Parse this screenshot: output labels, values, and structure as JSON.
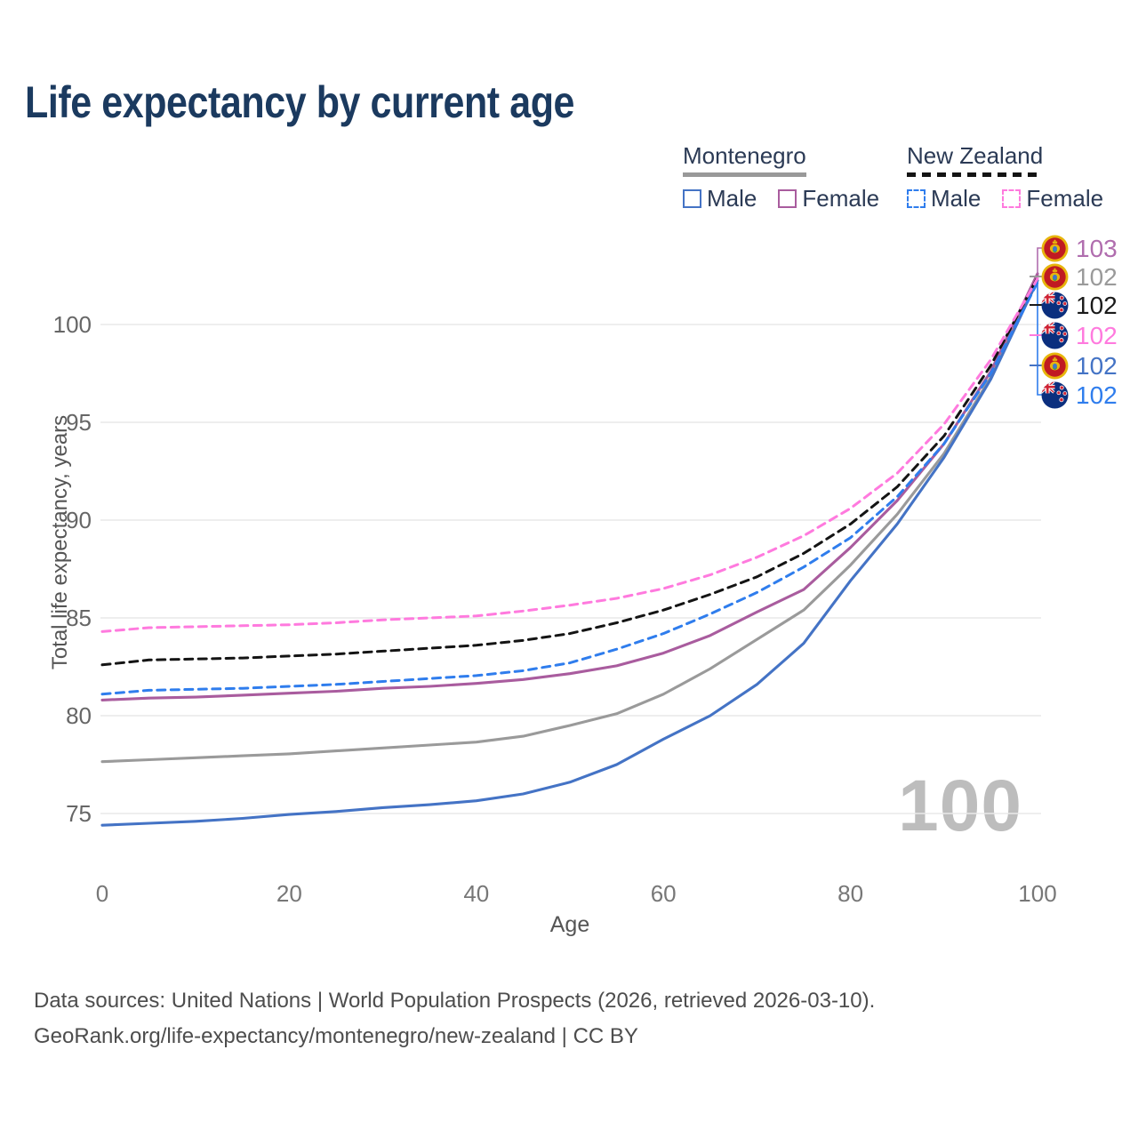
{
  "title": "Life expectancy by current age",
  "watermark_age": "100",
  "legend": {
    "groups": [
      {
        "name": "Montenegro",
        "line_style": "solid",
        "line_color": "#999999",
        "items": [
          {
            "label": "Male",
            "color": "#4473c5"
          },
          {
            "label": "Female",
            "color": "#a95c9e"
          }
        ]
      },
      {
        "name": "New Zealand",
        "line_style": "dashed",
        "line_color": "#141414",
        "items": [
          {
            "label": "Male",
            "color": "#2f7ded"
          },
          {
            "label": "Female",
            "color": "#ff7ade"
          }
        ]
      }
    ]
  },
  "footer": {
    "line1": "Data sources: United Nations | World Population Prospects (2026, retrieved 2026-03-10).",
    "line2": "GeoRank.org/life-expectancy/montenegro/new-zealand | CC BY"
  },
  "chart_data": {
    "type": "line",
    "title": "Life expectancy by current age",
    "xlabel": "Age",
    "ylabel": "Total life expectancy, years",
    "x_ticks": [
      0,
      20,
      40,
      60,
      80,
      100
    ],
    "y_ticks": [
      75,
      80,
      85,
      90,
      95,
      100
    ],
    "xlim": [
      0,
      100
    ],
    "ylim": [
      73,
      103.5
    ],
    "grid": "horizontal-only",
    "legend_position": "top-right",
    "ages": [
      0,
      5,
      10,
      15,
      20,
      25,
      30,
      35,
      40,
      45,
      50,
      55,
      60,
      65,
      70,
      75,
      80,
      85,
      90,
      95,
      100
    ],
    "series": [
      {
        "name": "Montenegro Both sexes",
        "country": "Montenegro",
        "sex": "both",
        "style": "solid",
        "color": "#9a9a9a",
        "values": [
          77.65,
          77.75,
          77.85,
          77.95,
          78.05,
          78.2,
          78.35,
          78.5,
          78.65,
          78.95,
          79.5,
          80.1,
          81.1,
          82.4,
          83.9,
          85.4,
          87.7,
          90.3,
          93.4,
          97.3,
          102.5
        ]
      },
      {
        "name": "Montenegro Male",
        "country": "Montenegro",
        "sex": "male",
        "style": "solid",
        "color": "#4473c5",
        "values": [
          74.4,
          74.5,
          74.6,
          74.75,
          74.95,
          75.1,
          75.3,
          75.45,
          75.65,
          76.0,
          76.6,
          77.5,
          78.8,
          80.0,
          81.6,
          83.7,
          86.9,
          89.8,
          93.2,
          97.2,
          102.25
        ]
      },
      {
        "name": "Montenegro Female",
        "country": "Montenegro",
        "sex": "female",
        "style": "solid",
        "color": "#a95c9e",
        "values": [
          80.8,
          80.9,
          80.95,
          81.05,
          81.15,
          81.25,
          81.4,
          81.5,
          81.65,
          81.85,
          82.15,
          82.55,
          83.2,
          84.1,
          85.3,
          86.45,
          88.6,
          91.0,
          93.9,
          97.6,
          102.6
        ]
      },
      {
        "name": "New Zealand Both sexes",
        "country": "New Zealand",
        "sex": "both",
        "style": "dashed",
        "color": "#141414",
        "values": [
          82.6,
          82.85,
          82.9,
          82.95,
          83.05,
          83.15,
          83.3,
          83.45,
          83.6,
          83.85,
          84.2,
          84.75,
          85.4,
          86.2,
          87.1,
          88.3,
          89.8,
          91.7,
          94.3,
          97.9,
          102.4
        ]
      },
      {
        "name": "New Zealand Male",
        "country": "New Zealand",
        "sex": "male",
        "style": "dashed",
        "color": "#2f7ded",
        "values": [
          81.1,
          81.3,
          81.35,
          81.4,
          81.5,
          81.6,
          81.75,
          81.9,
          82.05,
          82.3,
          82.7,
          83.4,
          84.2,
          85.2,
          86.3,
          87.6,
          89.1,
          91.2,
          93.9,
          97.5,
          102.15
        ]
      },
      {
        "name": "New Zealand Female",
        "country": "New Zealand",
        "sex": "female",
        "style": "dashed",
        "color": "#ff7ade",
        "values": [
          84.3,
          84.5,
          84.55,
          84.6,
          84.65,
          84.75,
          84.9,
          85.0,
          85.1,
          85.35,
          85.65,
          86.0,
          86.5,
          87.2,
          88.1,
          89.2,
          90.6,
          92.4,
          94.9,
          98.2,
          102.35
        ]
      }
    ],
    "end_labels": [
      {
        "text": "103",
        "color": "#b06dae",
        "flag": "montenegro",
        "series": "Montenegro Female"
      },
      {
        "text": "102",
        "color": "#9a9a9a",
        "flag": "montenegro",
        "series": "Montenegro Both sexes"
      },
      {
        "text": "102",
        "color": "#1a1a1a",
        "flag": "new-zealand",
        "series": "New Zealand Both sexes"
      },
      {
        "text": "102",
        "color": "#ff7ade",
        "flag": "new-zealand",
        "series": "New Zealand Female"
      },
      {
        "text": "102",
        "color": "#4473c5",
        "flag": "montenegro",
        "series": "Montenegro Male"
      },
      {
        "text": "102",
        "color": "#2f7ded",
        "flag": "new-zealand",
        "series": "New Zealand Male"
      }
    ]
  }
}
